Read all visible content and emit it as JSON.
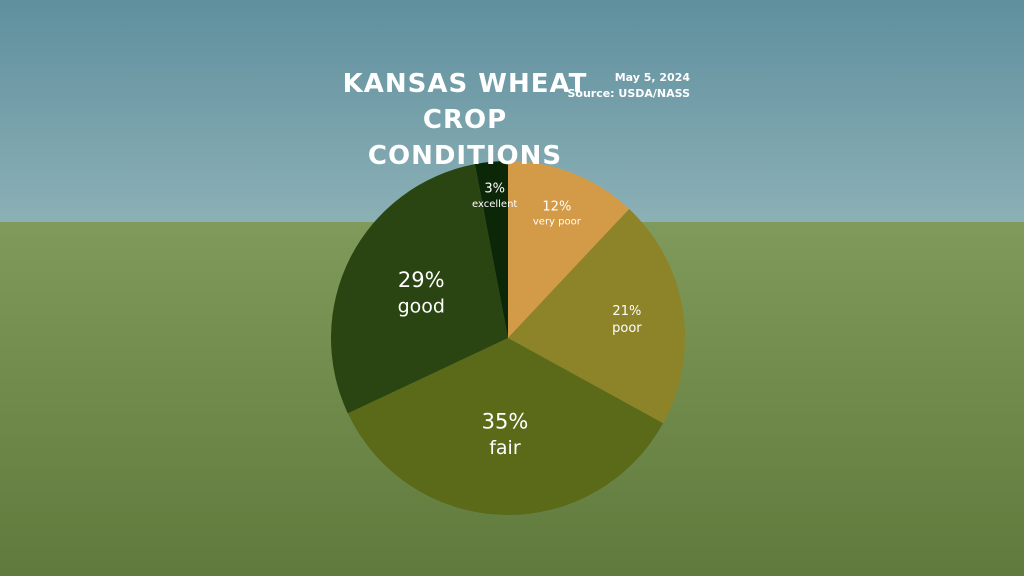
{
  "chart_data": {
    "type": "pie",
    "title": "KANSAS WHEAT CROP CONDITIONS",
    "date": "May 5, 2024",
    "source": "Source: USDA/NASS",
    "categories": [
      "very poor",
      "poor",
      "fair",
      "good",
      "excellent"
    ],
    "values": [
      12,
      21,
      35,
      29,
      3
    ],
    "value_labels": [
      "12%",
      "21%",
      "35%",
      "29%",
      "3%"
    ],
    "colors": [
      "#d39a48",
      "#8d8329",
      "#5b6a19",
      "#2a4511",
      "#0c2707"
    ]
  }
}
